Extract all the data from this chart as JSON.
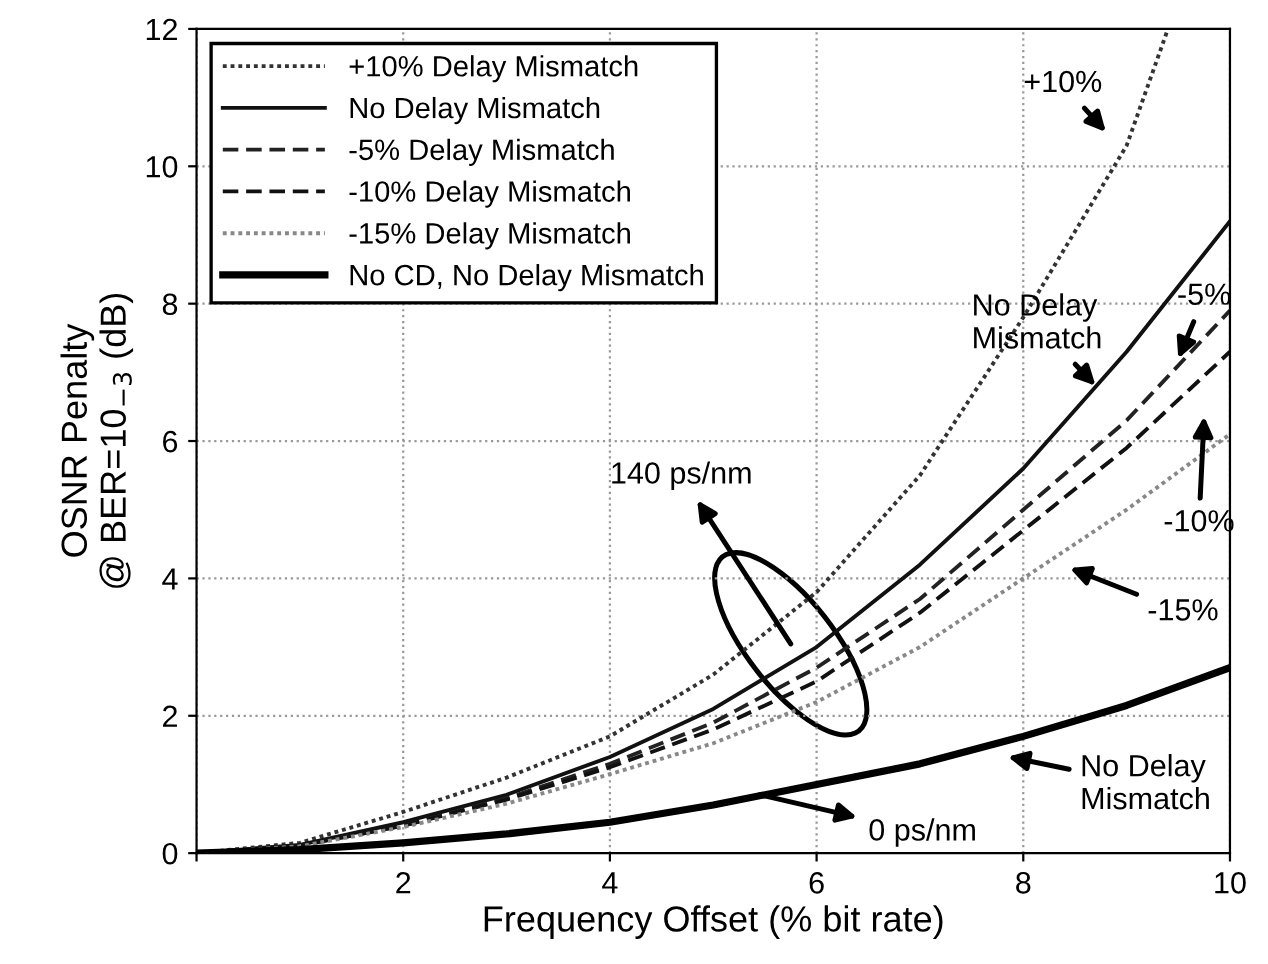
{
  "chart_data": {
    "type": "line",
    "xlabel": "Frequency Offset (% bit rate)",
    "ylabel": "OSNR Penalty\n@ BER=10$_{−3}$ (dB)",
    "x": [
      0,
      1,
      2,
      3,
      4,
      5,
      6,
      7,
      8,
      9,
      10
    ],
    "xlim": [
      0,
      10
    ],
    "xticks": [
      {
        "value": 0,
        "label": null
      },
      2,
      4,
      6,
      8,
      10
    ],
    "ylim": [
      0,
      12
    ],
    "yticks": [
      0,
      2,
      4,
      6,
      8,
      10,
      12
    ],
    "grid": true,
    "legend": "top left",
    "series": [
      {
        "name": "+10% Delay Mismatch",
        "color": "#333333",
        "line_style": "dotted",
        "x": [
          0,
          1,
          2,
          3,
          4,
          5,
          6,
          7,
          8,
          9,
          9.4
        ],
        "values": [
          0,
          0.15,
          0.6,
          1.1,
          1.7,
          2.6,
          3.8,
          5.5,
          7.8,
          10.3,
          12
        ]
      },
      {
        "name": "No Delay Mismatch",
        "color": "#111111",
        "line_style": "solid",
        "values": [
          0,
          0.12,
          0.45,
          0.85,
          1.4,
          2.1,
          3.0,
          4.2,
          5.6,
          7.3,
          9.2
        ]
      },
      {
        "name": "-5% Delay Mismatch",
        "color": "#222222",
        "line_style": "dashed",
        "values": [
          0,
          0.11,
          0.4,
          0.8,
          1.3,
          1.9,
          2.7,
          3.7,
          5.0,
          6.3,
          7.9
        ]
      },
      {
        "name": "-10% Delay Mismatch",
        "color": "#111111",
        "line_style": "dashed",
        "values": [
          0,
          0.11,
          0.4,
          0.78,
          1.25,
          1.8,
          2.5,
          3.5,
          4.7,
          5.9,
          7.3
        ]
      },
      {
        "name": "-15% Delay Mismatch",
        "color": "#888888",
        "line_style": "dotted",
        "values": [
          0,
          0.1,
          0.38,
          0.72,
          1.15,
          1.6,
          2.2,
          3.0,
          4.0,
          5.0,
          6.1
        ]
      },
      {
        "name": "No CD, No Delay Mismatch",
        "color": "#000000",
        "line_style": "solid",
        "values": [
          0,
          0.05,
          0.15,
          0.28,
          0.45,
          0.7,
          1.0,
          1.3,
          1.7,
          2.15,
          2.7
        ]
      }
    ],
    "annotations": [
      "+10%",
      "No Delay\nMismatch",
      "-5%",
      "-10%",
      "-15%",
      "140 ps/nm",
      {
        "text": "0 ps/nm",
        "x": 5.45,
        "y": 0.85
      },
      "No Delay\nMismatch"
    ]
  }
}
